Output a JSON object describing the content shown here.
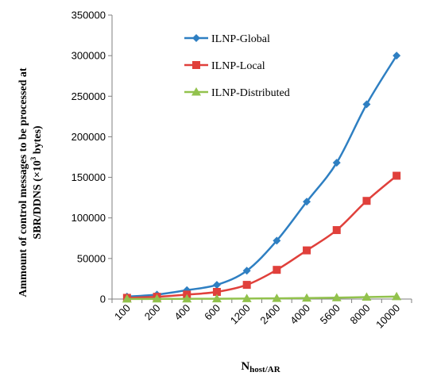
{
  "chart_data": {
    "type": "line",
    "ylabel_line1": "Ammount of control messages to be processed at",
    "ylabel_line2_prefix": "SBR/DDNS (×10",
    "ylabel_line2_exp": "3",
    "ylabel_line2_suffix": " bytes)",
    "xlabel_main": "N",
    "xlabel_sub": "host/AR",
    "ylim": [
      0,
      350000
    ],
    "yticks": [
      0,
      50000,
      100000,
      150000,
      200000,
      250000,
      300000,
      350000
    ],
    "ytick_labels": [
      "0",
      "50000",
      "100000",
      "150000",
      "200000",
      "250000",
      "300000",
      "350000"
    ],
    "categories": [
      "100",
      "200",
      "400",
      "600",
      "1200",
      "2400",
      "4000",
      "5600",
      "8000",
      "10000"
    ],
    "legend_position": "top-right",
    "grid": false,
    "series": [
      {
        "name": "ILNP-Global",
        "color": "#2e7fc2",
        "marker": "diamond",
        "values": [
          3000,
          5500,
          11000,
          17500,
          35000,
          72000,
          120000,
          168000,
          240000,
          300000
        ]
      },
      {
        "name": "ILNP-Local",
        "color": "#e0403b",
        "marker": "square",
        "values": [
          1500,
          2800,
          5500,
          8800,
          17500,
          36000,
          60000,
          85000,
          121000,
          152000
        ]
      },
      {
        "name": "ILNP-Distributed",
        "color": "#92c24d",
        "marker": "triangle",
        "values": [
          100,
          200,
          300,
          400,
          600,
          900,
          1200,
          1700,
          2400,
          3000
        ]
      }
    ]
  }
}
